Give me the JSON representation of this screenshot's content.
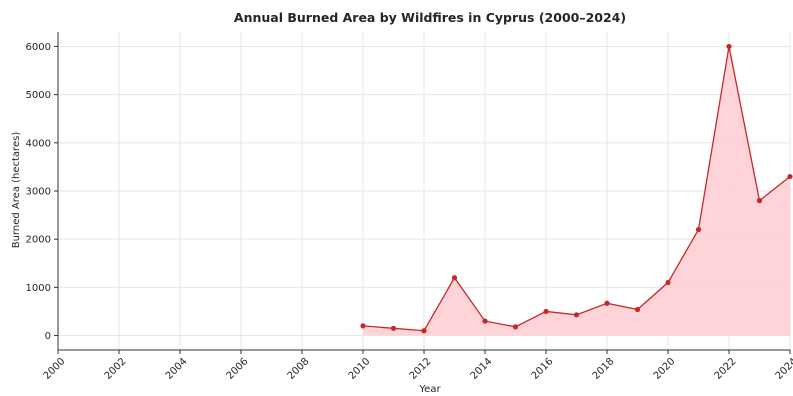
{
  "chart_data": {
    "type": "area",
    "title": "Annual Burned Area by Wildfires in Cyprus (2000–2024)",
    "xlabel": "Year",
    "ylabel": "Burned Area (hectares)",
    "xlim": [
      2000,
      2024
    ],
    "ylim": [
      -300,
      6300
    ],
    "x_ticks": [
      "2000",
      "2002",
      "2004",
      "2006",
      "2008",
      "2010",
      "2012",
      "2014",
      "2016",
      "2018",
      "2020",
      "2022",
      "2024"
    ],
    "y_ticks": [
      "0",
      "1000",
      "2000",
      "3000",
      "4000",
      "5000",
      "6000"
    ],
    "grid": true,
    "legend": "none",
    "line_color": "#c62828",
    "fill_color": "#ffcdd2",
    "series": [
      {
        "x": [
          2010,
          2011,
          2012,
          2013,
          2014,
          2015,
          2016,
          2017,
          2018,
          2019,
          2020,
          2021,
          2022,
          2023,
          2024
        ],
        "values": [
          200,
          150,
          100,
          1200,
          300,
          180,
          500,
          430,
          670,
          540,
          1100,
          2200,
          6000,
          2800,
          3300
        ]
      }
    ]
  }
}
